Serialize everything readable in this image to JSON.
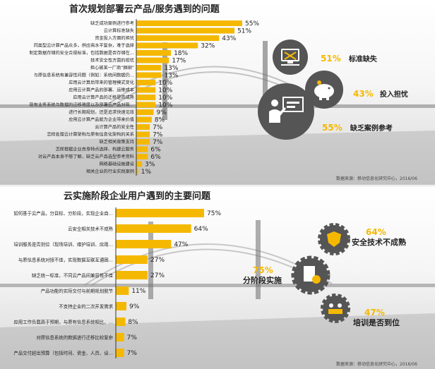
{
  "panel1": {
    "title": "首次规划部署云产品/服务遇到的问题",
    "source": "数据来源：移动信息化研究中心，2016/06",
    "highlights": [
      {
        "pct": "51%",
        "label": "标准缺失",
        "icon": "computer-tools-icon"
      },
      {
        "pct": "43%",
        "label": "投入担忧",
        "icon": "piggy-bank-icon"
      },
      {
        "pct": "55%",
        "label": "缺乏案例参考",
        "icon": "presenter-board-icon"
      }
    ]
  },
  "panel2": {
    "title": "云实施阶段企业用户遇到的主要问题",
    "source": "数据来源：移动信息化研究中心，2016/06",
    "highlights": [
      {
        "pct": "64%",
        "label": "安全技术不成熟",
        "icon": "shield-hand-icon"
      },
      {
        "pct": "75%",
        "label": "分阶段实施",
        "icon": "clipboard-clock-icon"
      },
      {
        "pct": "47%",
        "label": "培训是否到位",
        "icon": "training-people-icon"
      }
    ]
  },
  "chart_data": [
    {
      "type": "bar",
      "orientation": "horizontal",
      "title": "首次规划部署云产品/服务遇到的问题",
      "categories": [
        "缺乏成功案例进行参考",
        "云计算标准缺失",
        "资金投入方面的担忧",
        "同类型云计算产品众多，供应商水平复杂，难于选择",
        "制定数据存储的安全合规标准，包括数据是否存储在…",
        "技术安全性方面的担忧",
        "担心被某一厂商“捆绑”",
        "与原信息系统有兼容性问题（例如：系统间数据仍…",
        "应用云计算后带来的管理模式变化",
        "应用云计算产品的部署、运维成本",
        "应用云计算产品的迁移是否成熟",
        "现有业务系统与数据的迁移难度以及部署云产品对现…",
        "进行长期规划，还是追求快速见效",
        "应用云计算产品能为企业带来价值",
        "云计算产品的安全性",
        "怎样处理云计算架构与原有信息化架构的关系",
        "缺乏相关政策支持",
        "怎样根据企业自身特点选择、构建云服务",
        "对云产品本身不够了解，缺乏云产品选型参考资料",
        "网络基础设施建设",
        "相关企业的行业实践案例"
      ],
      "values": [
        55,
        51,
        43,
        32,
        18,
        17,
        13,
        13,
        10,
        10,
        10,
        10,
        9,
        8,
        7,
        7,
        7,
        6,
        6,
        3,
        1
      ],
      "data_labels": [
        "55%",
        "51%",
        "43%",
        "32%",
        "18%",
        "17%",
        "13%",
        "13%",
        "10%",
        "10%",
        "10%",
        "10%",
        "9%",
        "8%",
        "7%",
        "7%",
        "7%",
        "6%",
        "6%",
        "3%",
        "1%"
      ],
      "color": "#f5b800"
    },
    {
      "type": "bar",
      "orientation": "horizontal",
      "title": "云实施阶段企业用户遇到的主要问题",
      "categories": [
        "如何基于云产品，分目标、分阶段，实现企业自…",
        "云安全相关技术不成熟",
        "培训服务是否到位（现场培训、维护培训、应用…",
        "与原信息系统对接不佳，实现数据互联互通困…",
        "缺乏统一标准，不同云产品间兼容性不佳",
        "产品功能的实际交付与前期规划脱节",
        "不支持企业的二次开发需求",
        "应用工作负载高于预期，与原有信息系统相比，…",
        "对原信息系统的数据进行迁移比较复杂",
        "产品交付超出预算（包括时间、资金、人员、设…"
      ],
      "values": [
        75,
        64,
        47,
        27,
        27,
        11,
        9,
        8,
        7,
        7
      ],
      "data_labels": [
        "75%",
        "64%",
        "47%",
        "27%",
        "27%",
        "11%",
        "9%",
        "8%",
        "7%",
        "7%"
      ],
      "color": "#f5b800"
    }
  ]
}
